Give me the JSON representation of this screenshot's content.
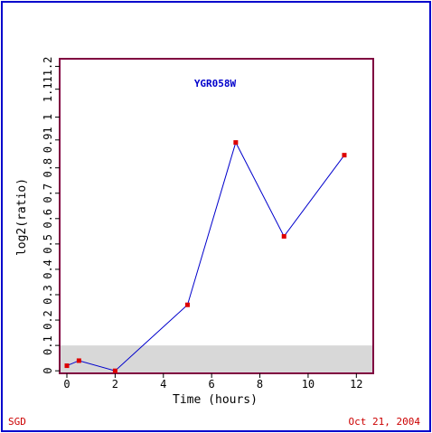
{
  "footer": {
    "source": "SGD",
    "date": "Oct 21, 2004"
  },
  "colors": {
    "frame": "#0000cc",
    "plot_border": "#800040",
    "line": "#0000cc",
    "point": "#dd0000",
    "band": "#d8d8d8",
    "title": "#0000cc",
    "footer": "#cc0000"
  },
  "chart_data": {
    "type": "line",
    "title": "YGR058W",
    "xlabel": "Time (hours)",
    "ylabel": "log2(ratio)",
    "xlim": [
      -0.3,
      12.7
    ],
    "ylim": [
      -0.01,
      1.23
    ],
    "x_ticks": [
      "0",
      "2",
      "4",
      "6",
      "8",
      "10",
      "12"
    ],
    "y_ticks": [
      "0",
      "0.1",
      "0.2",
      "0.3",
      "0.4",
      "0.5",
      "0.6",
      "0.7",
      "0.8",
      "0.91",
      "1",
      "1.11",
      "1.2"
    ],
    "shaded_band": [
      -0.01,
      0.1
    ],
    "grid": false,
    "series": [
      {
        "x": [
          0,
          0.5,
          2,
          5,
          7,
          9,
          11.5
        ],
        "y": [
          0.02,
          0.04,
          0.0,
          0.26,
          0.9,
          0.53,
          0.85
        ]
      }
    ]
  }
}
